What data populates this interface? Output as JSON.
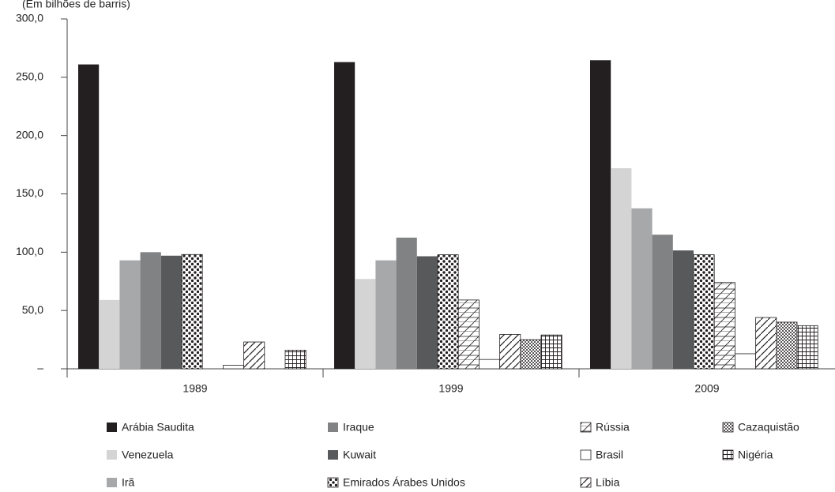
{
  "chart_data": {
    "type": "bar",
    "subtitle": "(Em bilhões de barris)",
    "categories": [
      "1989",
      "1999",
      "2009"
    ],
    "ylim": [
      0,
      300
    ],
    "yticks": [
      {
        "value": 0,
        "label": "–"
      },
      {
        "value": 50,
        "label": "50,0"
      },
      {
        "value": 100,
        "label": "100,0"
      },
      {
        "value": 150,
        "label": "150,0"
      },
      {
        "value": 200,
        "label": "200,0"
      },
      {
        "value": 250,
        "label": "250,0"
      },
      {
        "value": 300,
        "label": "300,0"
      }
    ],
    "series": [
      {
        "name": "Arábia Saudita",
        "color": "#231f20",
        "values": [
          261,
          263,
          264.6
        ]
      },
      {
        "name": "Venezuela",
        "color": "#d4d4d4",
        "values": [
          59,
          77,
          172
        ]
      },
      {
        "name": "Irã",
        "color": "#a7a8aa",
        "values": [
          93,
          93,
          137.6
        ]
      },
      {
        "name": "Iraque",
        "color": "#818284",
        "values": [
          100,
          112.5,
          115
        ]
      },
      {
        "name": "Kuwait",
        "color": "#58595b",
        "values": [
          97,
          96.5,
          101.5
        ]
      },
      {
        "name": "Emirados Árabes Unidos",
        "color": "#231f20",
        "pattern": "dots",
        "values": [
          98,
          97.8,
          97.8
        ]
      },
      {
        "name": "Rússia",
        "color": "#231f20",
        "pattern": "hatch",
        "values": [
          null,
          59,
          74
        ]
      },
      {
        "name": "Brasil",
        "color": "#231f20",
        "pattern": "outline",
        "values": [
          3,
          8,
          12.9
        ]
      },
      {
        "name": "Líbia",
        "color": "#231f20",
        "pattern": "diagonal",
        "values": [
          23,
          29.5,
          44
        ]
      },
      {
        "name": "Cazaquistão",
        "color": "#231f20",
        "pattern": "dense-dots",
        "values": [
          null,
          25,
          40
        ]
      },
      {
        "name": "Nigéria",
        "color": "#231f20",
        "pattern": "grid",
        "values": [
          16,
          29,
          37
        ]
      }
    ]
  }
}
